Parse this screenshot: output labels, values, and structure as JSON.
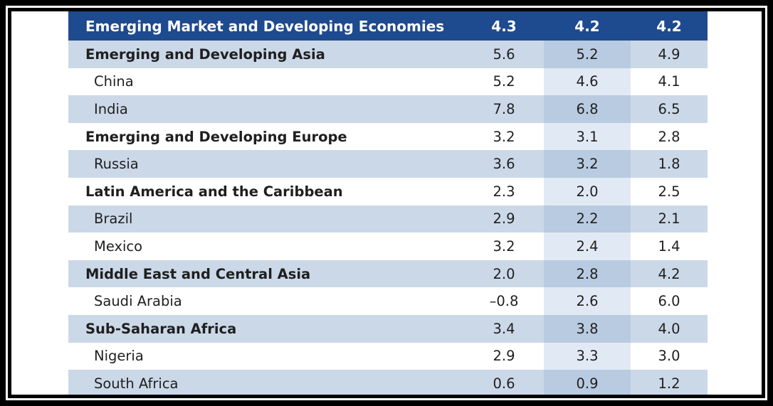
{
  "table": {
    "rows": [
      {
        "label": "Emerging Market and Developing Economies",
        "v1": "4.3",
        "v2": "4.2",
        "v3": "4.2"
      },
      {
        "label": "Emerging and Developing Asia",
        "v1": "5.6",
        "v2": "5.2",
        "v3": "4.9"
      },
      {
        "label": "China",
        "v1": "5.2",
        "v2": "4.6",
        "v3": "4.1"
      },
      {
        "label": "India",
        "v1": "7.8",
        "v2": "6.8",
        "v3": "6.5"
      },
      {
        "label": "Emerging and Developing Europe",
        "v1": "3.2",
        "v2": "3.1",
        "v3": "2.8"
      },
      {
        "label": "Russia",
        "v1": "3.6",
        "v2": "3.2",
        "v3": "1.8"
      },
      {
        "label": "Latin America and the Caribbean",
        "v1": "2.3",
        "v2": "2.0",
        "v3": "2.5"
      },
      {
        "label": "Brazil",
        "v1": "2.9",
        "v2": "2.2",
        "v3": "2.1"
      },
      {
        "label": "Mexico",
        "v1": "3.2",
        "v2": "2.4",
        "v3": "1.4"
      },
      {
        "label": "Middle East and Central Asia",
        "v1": "2.0",
        "v2": "2.8",
        "v3": "4.2"
      },
      {
        "label": "Saudi Arabia",
        "v1": "–0.8",
        "v2": "2.6",
        "v3": "6.0"
      },
      {
        "label": "Sub-Saharan Africa",
        "v1": "3.4",
        "v2": "3.8",
        "v3": "4.0"
      },
      {
        "label": "Nigeria",
        "v1": "2.9",
        "v2": "3.3",
        "v3": "3.0"
      },
      {
        "label": "South Africa",
        "v1": "0.6",
        "v2": "0.9",
        "v3": "1.2"
      }
    ]
  },
  "colors": {
    "header": "#1e4a8f",
    "shade": "#cbd8e8",
    "shade_mid_column": "#b9cbe0",
    "plain_mid_column": "#e1eaf4"
  }
}
